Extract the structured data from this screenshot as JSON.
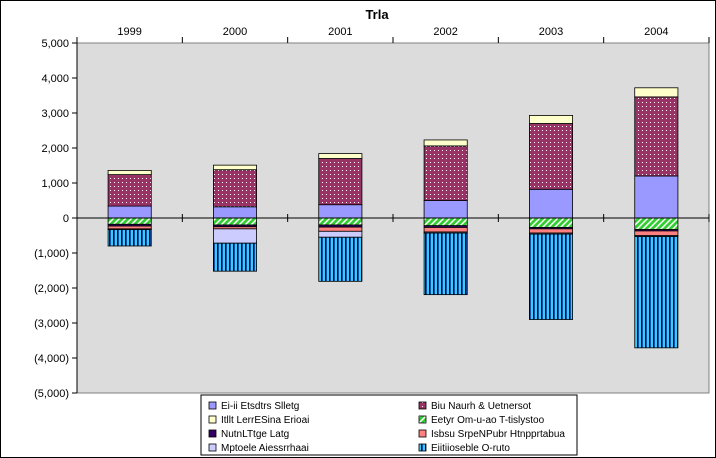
{
  "chart_data": {
    "type": "bar",
    "stacked": true,
    "title": "Trla",
    "categories": [
      "1999",
      "2000",
      "2001",
      "2002",
      "2003",
      "2004"
    ],
    "ylim": [
      -5000,
      5000
    ],
    "y_ticks": [
      5000,
      4000,
      3000,
      2000,
      1000,
      0,
      -1000,
      -2000,
      -3000,
      -4000,
      -5000
    ],
    "y_tick_labels": [
      "5,000",
      "4,000",
      "3,000",
      "2,000",
      "1,000",
      "0",
      "(1,000)",
      "(2,000)",
      "(3,000)",
      "(4,000)",
      "(5,000)"
    ],
    "category_axis_position": "top",
    "grid": false,
    "plot_background": "#dcdcdc",
    "legend_position": "bottom",
    "series": [
      {
        "name": "Ei-ii Etsdtrs Slletg",
        "values": [
          340,
          320,
          380,
          500,
          820,
          1200
        ],
        "color": "#9999ff",
        "pattern": "solid"
      },
      {
        "name": "Biu Naurh & Uetnersot",
        "values": [
          900,
          1060,
          1320,
          1560,
          1880,
          2260
        ],
        "color": "#993366",
        "pattern": "dots"
      },
      {
        "name": "Itllt LerrESina Erioai",
        "values": [
          120,
          130,
          140,
          170,
          230,
          260
        ],
        "color": "#ffffcc",
        "pattern": "solid"
      },
      {
        "name": "Eetyr Om-u-ao T-tislystoo",
        "values": [
          -180,
          -200,
          -200,
          -220,
          -270,
          -330
        ],
        "color": "#33cc33",
        "pattern": "diagonal"
      },
      {
        "name": "NutnLTtge Latg",
        "values": [
          -50,
          -50,
          -60,
          -50,
          -40,
          -40
        ],
        "color": "#330066",
        "pattern": "solid"
      },
      {
        "name": "Isbsu SrpeNPubr Htnpprtabua",
        "values": [
          -80,
          -60,
          -120,
          -130,
          -120,
          -130
        ],
        "color": "#ff8080",
        "pattern": "solid"
      },
      {
        "name": "Mptoele Aiessrrhaai",
        "values": [
          -20,
          -410,
          -170,
          -30,
          -30,
          -30
        ],
        "color": "#ccccff",
        "pattern": "solid"
      },
      {
        "name": "Eiitiioseble O-ruto",
        "values": [
          -470,
          -800,
          -1260,
          -1760,
          -2440,
          -3180
        ],
        "color": "#33ccff",
        "pattern": "vertical"
      }
    ]
  }
}
